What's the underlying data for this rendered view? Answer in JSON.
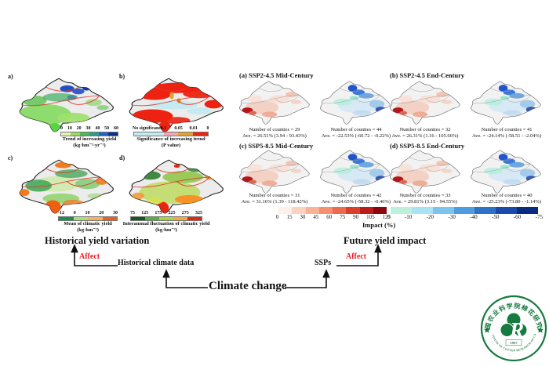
{
  "historical": {
    "section_title": "Historical yield variation",
    "panels": [
      {
        "tag": "a)",
        "legend": {
          "ticks": [
            "0",
            "10",
            "20",
            "30",
            "40",
            "50",
            "60"
          ],
          "colors": [
            "#e2f3ae",
            "#9bd95f",
            "#4fba55",
            "#2a9b8e",
            "#2164c4",
            "#0c2e8c"
          ],
          "label1": "Trend of increasing yield",
          "label2": "(kg·hm⁻²·yr⁻¹)"
        }
      },
      {
        "tag": "b)",
        "legend": {
          "no_sig": "No significance",
          "ticks": [
            "0.1",
            "0.05",
            "0.01",
            "0"
          ],
          "colors": [
            "#c2eaf2",
            "#f2a8b0",
            "#dfa32e",
            "#ee2211"
          ],
          "label1": "Significance of increasing trend",
          "label2": "(P value)"
        }
      },
      {
        "tag": "c)",
        "legend": {
          "ticks": [
            "-12",
            "0",
            "10",
            "20",
            "30"
          ],
          "colors": [
            "#18924a",
            "#a8dd7c",
            "#f7b15c",
            "#e8611c"
          ],
          "label1": "Mean of climatic yield",
          "label2": "(kg·hm⁻²)"
        }
      },
      {
        "tag": "d)",
        "legend": {
          "ticks": [
            "75",
            "125",
            "175",
            "225",
            "275",
            "325"
          ],
          "colors": [
            "#14581e",
            "#56b03c",
            "#a8d23f",
            "#f2a93b",
            "#e8250f"
          ],
          "label1": "Interannual fluctuation of climatic yield",
          "label2": "(kg·hm⁻²)"
        }
      }
    ]
  },
  "future": {
    "section_title": "Future yield impact",
    "panels": [
      {
        "title": "(a) SSP2-4.5 Mid-Century",
        "pos_counties": "Number of counties = 29",
        "pos_ave": "Ave.  = 26.51% (3.94 - 93.43%)",
        "neg_counties": "Number of counties = 44",
        "neg_ave": "Ave.  = -22.53% (-60.72 - -0.22%)"
      },
      {
        "title": "(b) SSP2-4.5 End-Century",
        "pos_counties": "Number of counties = 32",
        "pos_ave": "Ave.  = 26.31% (1.16 - 105.66%)",
        "neg_counties": "Number of counties = 41",
        "neg_ave": "Ave.  = -24.14% (-58.51 - -2.04%)"
      },
      {
        "title": "(c) SSP5-8.5 Mid-Century",
        "pos_counties": "Number of counties = 31",
        "pos_ave": "Ave.  = 31.16% (1.39 - 118.42%)",
        "neg_counties": "Number of counties = 42",
        "neg_ave": "Ave.  = -24.65% (-58.32 - -0.46%)"
      },
      {
        "title": "(d) SSP5-8.5 End-Century",
        "pos_counties": "Number of counties = 33",
        "pos_ave": "Ave.  = 29.81% (3.15 - 94.55%)",
        "neg_counties": "Number of counties = 40",
        "neg_ave": "Ave.  = -25.23% (-73.80 - -1.14%)"
      }
    ],
    "impact_scale": {
      "positive": {
        "ticks": [
          "0",
          "15",
          "30",
          "45",
          "60",
          "75",
          "90",
          "105",
          "125"
        ],
        "colors": [
          "#fdf0ea",
          "#fbd2bd",
          "#f9b295",
          "#f58f70",
          "#ec6a4d",
          "#d93f2b",
          "#bb1c17",
          "#8c0610"
        ]
      },
      "negative": {
        "ticks": [
          "0",
          "-10",
          "-20",
          "-30",
          "-40",
          "-50",
          "-60",
          "-75"
        ],
        "colors": [
          "#bdf0dc",
          "#a9e2f3",
          "#7cc4ed",
          "#4e9ddf",
          "#2e72c8",
          "#1b4aab",
          "#0a2a80"
        ]
      },
      "label": "Impact (%)"
    }
  },
  "flow": {
    "affect_left": "Affect",
    "historical_climate_data": "Historical climate data",
    "climate_change": "Climate change",
    "ssps": "SSPs",
    "affect_right": "Affect",
    "accent_color": "#ed1c24"
  },
  "logo": {
    "cn": "中国农业科学院棉花研究所",
    "en": "INSTITUTE OF COTTON RESEARCH OF CAAS",
    "year": "1957",
    "color": "#177a3e"
  }
}
